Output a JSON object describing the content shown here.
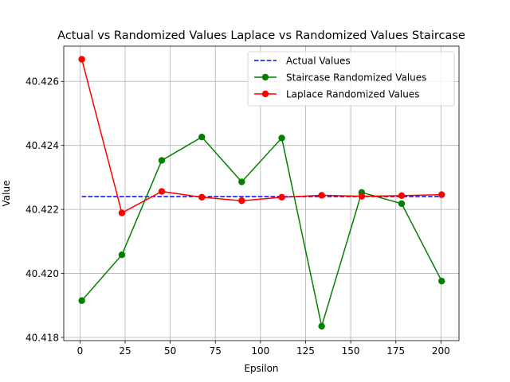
{
  "chart_data": {
    "type": "line",
    "title": "Actual vs Randomized Values Laplace vs Randomized Values Staircase",
    "xlabel": "Epsilon",
    "ylabel": "Value",
    "xlim": [
      -9.0,
      210.0
    ],
    "ylim": [
      40.4179,
      40.4271
    ],
    "xticks": [
      0,
      25,
      50,
      75,
      100,
      125,
      150,
      175,
      200
    ],
    "yticks": [
      40.418,
      40.42,
      40.422,
      40.424,
      40.426
    ],
    "ytick_labels": [
      "40.418",
      "40.420",
      "40.422",
      "40.424",
      "40.426"
    ],
    "grid": true,
    "legend_position": "top-right",
    "x": [
      1,
      23.2,
      45.3,
      67.5,
      89.6,
      111.8,
      133.9,
      156.1,
      178.2,
      200.4
    ],
    "series": [
      {
        "name": "Actual Values",
        "color": "#0000ff",
        "style": "dashed",
        "marker": "none",
        "values": [
          40.4224,
          40.4224,
          40.4224,
          40.4224,
          40.4224,
          40.4224,
          40.4224,
          40.4224,
          40.4224,
          40.4224
        ]
      },
      {
        "name": "Staircase Randomized Values",
        "color": "#008000",
        "style": "solid",
        "marker": "circle",
        "values": [
          40.41915,
          40.42058,
          40.42353,
          40.42426,
          40.42286,
          40.42423,
          40.41835,
          40.42253,
          40.42218,
          40.41976
        ]
      },
      {
        "name": "Laplace Randomized Values",
        "color": "#ff0000",
        "style": "solid",
        "marker": "circle",
        "values": [
          40.42669,
          40.42189,
          40.42256,
          40.42238,
          40.42227,
          40.42238,
          40.42244,
          40.42241,
          40.42243,
          40.42246
        ]
      }
    ]
  }
}
